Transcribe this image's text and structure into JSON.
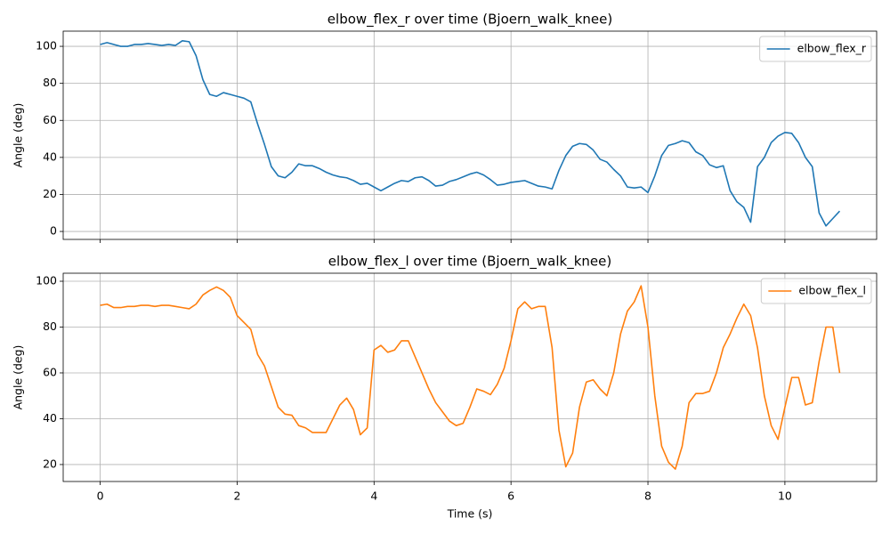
{
  "chart_data": [
    {
      "type": "line",
      "title": "elbow_flex_r over time (Bjoern_walk_knee)",
      "ylabel": "Angle (deg)",
      "x": [
        0,
        0.1,
        0.2,
        0.3,
        0.4,
        0.5,
        0.6,
        0.7,
        0.8,
        0.9,
        1,
        1.1,
        1.2,
        1.3,
        1.4,
        1.5,
        1.6,
        1.7,
        1.8,
        1.9,
        2,
        2.1,
        2.2,
        2.3,
        2.4,
        2.5,
        2.6,
        2.7,
        2.8,
        2.9,
        3,
        3.1,
        3.2,
        3.3,
        3.4,
        3.5,
        3.6,
        3.7,
        3.8,
        3.9,
        4,
        4.1,
        4.2,
        4.3,
        4.4,
        4.5,
        4.6,
        4.7,
        4.8,
        4.9,
        5,
        5.1,
        5.2,
        5.3,
        5.4,
        5.5,
        5.6,
        5.7,
        5.8,
        5.9,
        6,
        6.1,
        6.2,
        6.3,
        6.4,
        6.5,
        6.6,
        6.7,
        6.8,
        6.9,
        7,
        7.1,
        7.2,
        7.3,
        7.4,
        7.5,
        7.6,
        7.7,
        7.8,
        7.9,
        8,
        8.1,
        8.2,
        8.3,
        8.4,
        8.5,
        8.6,
        8.7,
        8.8,
        8.9,
        9,
        9.1,
        9.2,
        9.3,
        9.4,
        9.5,
        9.6,
        9.7,
        9.8,
        9.9,
        10,
        10.1,
        10.2,
        10.3,
        10.4,
        10.5,
        10.6,
        10.7,
        10.8
      ],
      "series": [
        {
          "name": "elbow_flex_r",
          "color": "#1f77b4",
          "values": [
            101,
            102,
            101,
            100,
            100,
            101,
            101,
            101.5,
            101,
            100.5,
            101,
            100.5,
            103,
            102.5,
            95,
            82,
            74,
            73,
            75,
            74,
            73,
            72,
            70,
            58,
            47,
            35,
            30,
            29,
            32,
            36.5,
            35.5,
            35.5,
            34,
            32,
            30.5,
            29.5,
            29,
            27.5,
            25.5,
            26,
            24,
            22,
            24,
            26,
            27.5,
            27,
            29,
            29.5,
            27.5,
            24.5,
            25,
            27,
            28,
            29.5,
            31,
            32,
            30.5,
            28,
            25,
            25.5,
            26.5,
            27,
            27.5,
            26,
            24.5,
            24,
            23,
            33,
            41,
            46,
            47.5,
            47,
            44,
            39,
            37.5,
            33.5,
            30,
            24,
            23.5,
            24,
            21,
            30,
            41,
            46.5,
            47.5,
            49,
            48,
            43,
            41,
            36,
            34.5,
            35.5,
            22,
            16,
            13,
            5,
            35,
            40,
            48,
            51.5,
            53.5,
            53,
            48,
            40,
            35,
            10,
            3,
            7,
            11
          ]
        }
      ],
      "xlim": [
        -0.54,
        11.34
      ],
      "xticks": [
        0,
        2,
        4,
        6,
        8,
        10
      ],
      "xtick_labels": false,
      "ylim": [
        -4.3,
        108.2
      ],
      "yticks": [
        0,
        20,
        40,
        60,
        80,
        100
      ],
      "grid": true,
      "legend": "upper right"
    },
    {
      "type": "line",
      "title": "elbow_flex_l over time (Bjoern_walk_knee)",
      "xlabel": "Time (s)",
      "ylabel": "Angle (deg)",
      "x": [
        0,
        0.1,
        0.2,
        0.3,
        0.4,
        0.5,
        0.6,
        0.7,
        0.8,
        0.9,
        1,
        1.1,
        1.2,
        1.3,
        1.4,
        1.5,
        1.6,
        1.7,
        1.8,
        1.9,
        2,
        2.1,
        2.2,
        2.3,
        2.4,
        2.5,
        2.6,
        2.7,
        2.8,
        2.9,
        3,
        3.1,
        3.2,
        3.3,
        3.4,
        3.5,
        3.6,
        3.7,
        3.8,
        3.9,
        4,
        4.1,
        4.2,
        4.3,
        4.4,
        4.5,
        4.6,
        4.7,
        4.8,
        4.9,
        5,
        5.1,
        5.2,
        5.3,
        5.4,
        5.5,
        5.6,
        5.7,
        5.8,
        5.9,
        6,
        6.1,
        6.2,
        6.3,
        6.4,
        6.5,
        6.6,
        6.7,
        6.8,
        6.9,
        7,
        7.1,
        7.2,
        7.3,
        7.4,
        7.5,
        7.6,
        7.7,
        7.8,
        7.9,
        8,
        8.1,
        8.2,
        8.3,
        8.4,
        8.5,
        8.6,
        8.7,
        8.8,
        8.9,
        9,
        9.1,
        9.2,
        9.3,
        9.4,
        9.5,
        9.6,
        9.7,
        9.8,
        9.9,
        10,
        10.1,
        10.2,
        10.3,
        10.4,
        10.5,
        10.6,
        10.7,
        10.8
      ],
      "series": [
        {
          "name": "elbow_flex_l",
          "color": "#ff7f0e",
          "values": [
            89.5,
            90,
            88.5,
            88.5,
            89,
            89,
            89.5,
            89.5,
            89,
            89.5,
            89.5,
            89,
            88.5,
            88,
            90,
            94,
            96,
            97.5,
            96,
            93,
            85,
            82,
            79,
            68,
            63,
            54,
            45,
            42,
            41.5,
            37,
            36,
            34,
            34,
            34,
            40,
            46,
            49,
            44,
            33,
            36,
            70,
            72,
            69,
            70,
            74,
            74,
            67,
            60,
            53,
            47,
            43,
            39,
            37,
            38,
            45,
            53,
            52,
            50.5,
            55,
            62,
            74,
            88,
            91,
            88,
            89,
            89,
            71,
            35,
            19,
            25,
            45,
            56,
            57,
            53,
            50,
            60,
            77,
            87,
            91,
            98,
            80,
            50,
            28,
            21,
            18,
            28,
            47,
            51,
            51,
            52,
            60,
            71,
            77,
            84,
            90,
            85,
            71,
            50,
            37,
            31,
            45,
            58,
            58,
            46,
            47,
            65,
            80,
            80,
            60
          ]
        }
      ],
      "xlim": [
        -0.54,
        11.34
      ],
      "xticks": [
        0,
        2,
        4,
        6,
        8,
        10
      ],
      "ylim": [
        12.6,
        103.5
      ],
      "yticks": [
        20,
        40,
        60,
        80,
        100
      ],
      "grid": true,
      "legend": "upper right"
    }
  ]
}
